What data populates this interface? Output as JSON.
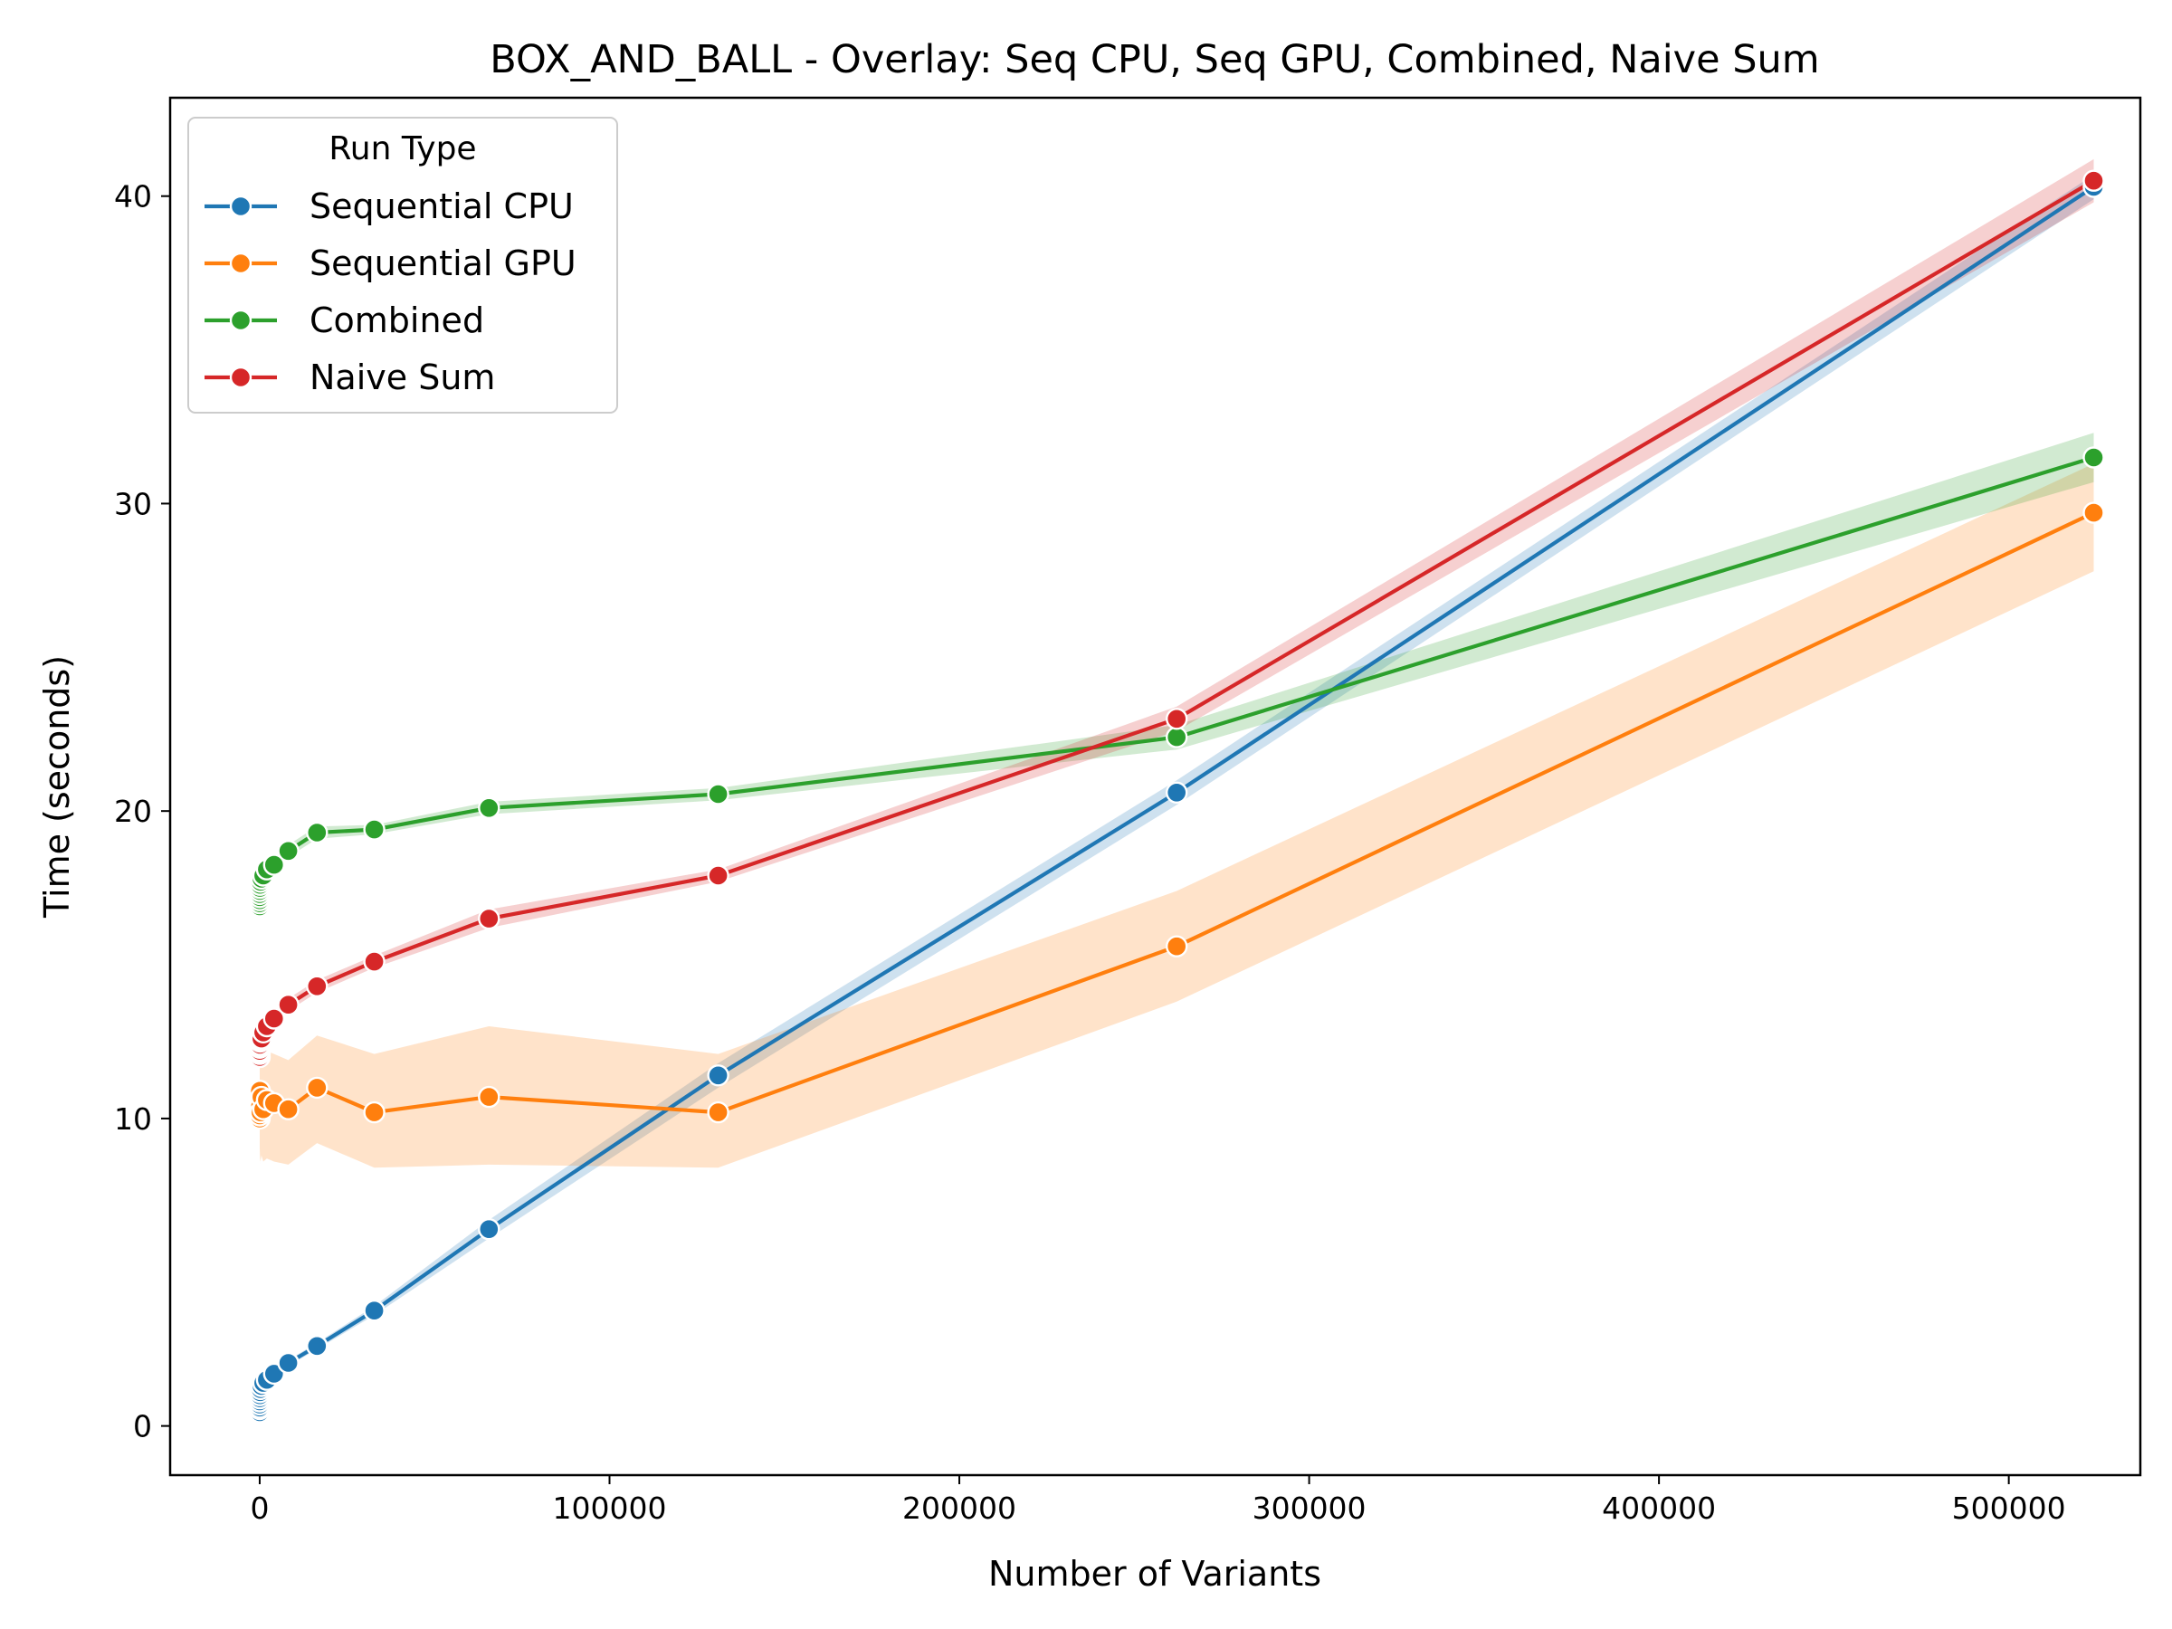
{
  "chart_data": {
    "type": "line",
    "title": "BOX_AND_BALL - Overlay: Seq CPU, Seq GPU, Combined, Naive Sum",
    "xlabel": "Number of Variants",
    "ylabel": "Time (seconds)",
    "xlim": [
      -25600,
      537600
    ],
    "ylim": [
      -1.6,
      43.2
    ],
    "xticks": [
      0,
      100000,
      200000,
      300000,
      400000,
      500000
    ],
    "yticks": [
      0,
      10,
      20,
      30,
      40
    ],
    "grid": false,
    "legend": {
      "title": "Run Type",
      "position": "top-left"
    },
    "x": [
      1,
      2,
      4,
      8,
      16,
      32,
      64,
      128,
      256,
      512,
      1024,
      2048,
      4096,
      8192,
      16384,
      32768,
      65536,
      131072,
      262144,
      524288
    ],
    "series": [
      {
        "name": "Sequential CPU",
        "color": "#1f77b4",
        "values": [
          0.45,
          0.55,
          0.6,
          0.7,
          0.8,
          0.9,
          1.0,
          1.1,
          1.2,
          1.3,
          1.4,
          1.5,
          1.7,
          2.05,
          2.6,
          3.75,
          6.4,
          11.4,
          20.6,
          40.3
        ],
        "lower": [
          0.35,
          0.45,
          0.5,
          0.6,
          0.7,
          0.8,
          0.9,
          1.0,
          1.1,
          1.2,
          1.3,
          1.4,
          1.6,
          1.95,
          2.5,
          3.6,
          6.1,
          11.0,
          20.2,
          39.9
        ],
        "upper": [
          0.55,
          0.65,
          0.7,
          0.8,
          0.9,
          1.0,
          1.1,
          1.2,
          1.3,
          1.4,
          1.5,
          1.6,
          1.8,
          2.15,
          2.7,
          3.9,
          6.7,
          11.8,
          21.0,
          40.7
        ]
      },
      {
        "name": "Sequential GPU",
        "color": "#ff7f0e",
        "values": [
          10.2,
          10.0,
          10.3,
          10.8,
          10.1,
          10.6,
          10.9,
          10.4,
          10.2,
          10.7,
          10.3,
          10.6,
          10.5,
          10.3,
          11.0,
          10.2,
          10.7,
          10.2,
          15.6,
          29.7
        ],
        "lower": [
          8.6,
          8.5,
          8.7,
          8.9,
          8.5,
          8.8,
          9.0,
          8.7,
          8.6,
          8.8,
          8.6,
          8.7,
          8.6,
          8.5,
          9.2,
          8.4,
          8.5,
          8.4,
          13.8,
          27.8
        ],
        "upper": [
          11.8,
          11.6,
          11.9,
          12.2,
          11.8,
          12.1,
          12.3,
          12.0,
          11.9,
          12.1,
          11.9,
          12.2,
          12.1,
          11.9,
          12.7,
          12.1,
          13.0,
          12.1,
          17.4,
          31.3
        ]
      },
      {
        "name": "Combined",
        "color": "#2ca02c",
        "values": [
          16.9,
          17.0,
          17.1,
          17.2,
          17.3,
          17.4,
          17.5,
          17.6,
          17.7,
          17.8,
          17.9,
          18.1,
          18.25,
          18.7,
          19.3,
          19.4,
          20.1,
          20.55,
          22.4,
          31.5
        ],
        "lower": [
          16.7,
          16.8,
          16.9,
          17.0,
          17.1,
          17.2,
          17.3,
          17.4,
          17.5,
          17.6,
          17.7,
          17.9,
          18.05,
          18.5,
          19.1,
          19.25,
          19.9,
          20.35,
          22.0,
          30.7
        ],
        "upper": [
          17.1,
          17.2,
          17.3,
          17.4,
          17.5,
          17.6,
          17.7,
          17.8,
          17.9,
          18.0,
          18.1,
          18.3,
          18.45,
          18.9,
          19.5,
          19.55,
          20.3,
          20.75,
          22.8,
          32.3
        ]
      },
      {
        "name": "Naive Sum",
        "color": "#d62728",
        "values": [
          12.0,
          12.1,
          12.15,
          12.2,
          12.3,
          12.35,
          12.4,
          12.5,
          12.55,
          12.6,
          12.8,
          13.0,
          13.25,
          13.7,
          14.3,
          15.1,
          16.5,
          17.9,
          23.0,
          40.5
        ],
        "lower": [
          11.8,
          11.9,
          11.95,
          12.0,
          12.1,
          12.15,
          12.2,
          12.3,
          12.35,
          12.4,
          12.6,
          12.8,
          13.05,
          13.5,
          14.1,
          14.9,
          16.2,
          17.7,
          22.6,
          39.8
        ],
        "upper": [
          12.2,
          12.3,
          12.35,
          12.4,
          12.5,
          12.55,
          12.6,
          12.7,
          12.75,
          12.8,
          13.0,
          13.2,
          13.45,
          13.9,
          14.5,
          15.3,
          16.8,
          18.1,
          23.4,
          41.2
        ]
      }
    ]
  }
}
